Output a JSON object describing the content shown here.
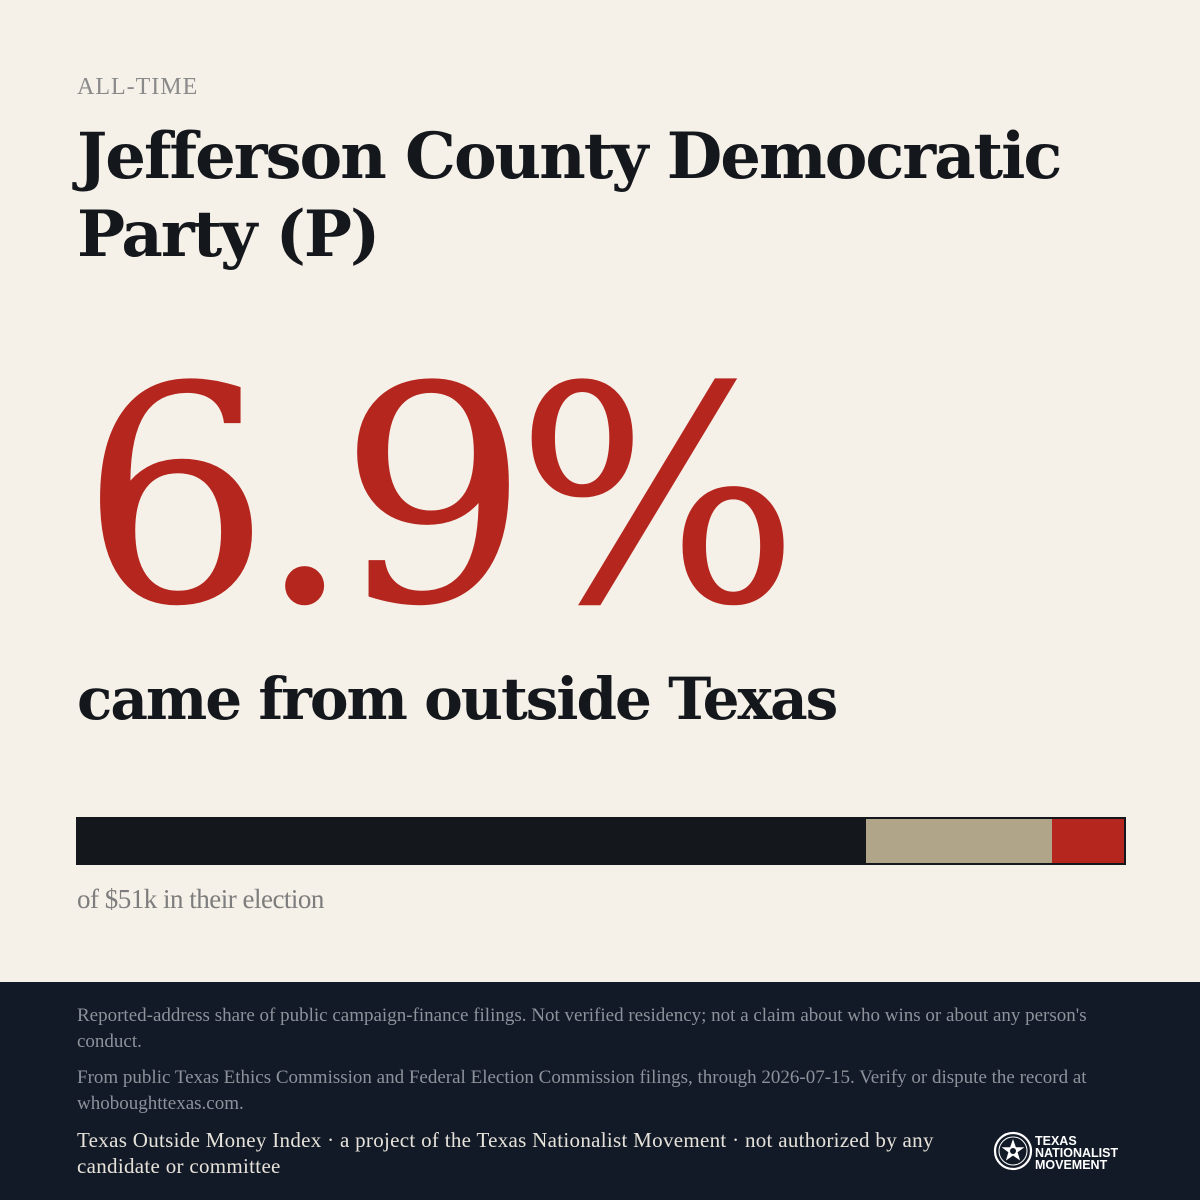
{
  "header": {
    "eyebrow": "ALL-TIME",
    "title": "Jefferson County Democratic Party (P)"
  },
  "stat": {
    "percent_label": "6.9%",
    "subline": "came from outside Texas"
  },
  "bar": {
    "segments": [
      {
        "fraction": 0.753,
        "color": "#14171c"
      },
      {
        "fraction": 0.178,
        "color": "#b0a489"
      },
      {
        "fraction": 0.069,
        "color": "#b5261e"
      }
    ],
    "caption": "of $51k in their election"
  },
  "footer": {
    "disclaimer": "Reported-address share of public campaign-finance filings. Not verified residency; not a claim about who wins or about any person's conduct.",
    "source": "From public Texas Ethics Commission and Federal Election Commission filings, through 2026-07-15. Verify or dispute the record at whoboughttexas.com.",
    "credit": "Texas Outside Money Index · a project of the Texas Nationalist Movement · not authorized by any candidate or committee",
    "logo": {
      "icon": "star-seal-icon",
      "line1": "TEXAS",
      "line2": "NATIONALIST",
      "line3": "MOVEMENT"
    }
  },
  "colors": {
    "background": "#f5f0e8",
    "accent": "#b5261e",
    "ink": "#14171c",
    "tan": "#b0a489",
    "footer_bg": "#121a27"
  }
}
